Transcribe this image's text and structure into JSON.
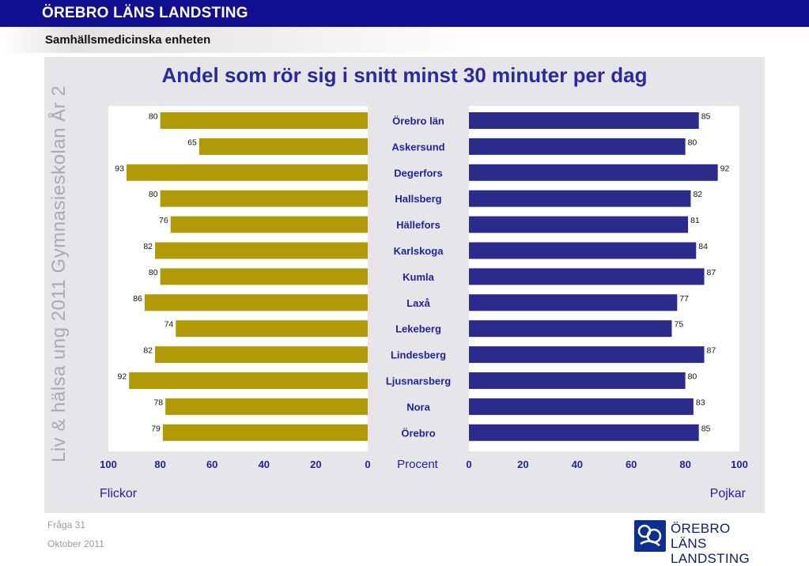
{
  "header": {
    "org_title": "ÖREBRO LÄNS LANDSTING",
    "unit_name": "Samhällsmedicinska enheten"
  },
  "side_text": "Liv & hälsa ung 2011 Gymnasieskolan År 2",
  "footer": {
    "question": "Fråga 31",
    "date": "Oktober 2011"
  },
  "logo": {
    "line1": "ÖREBRO LÄNS",
    "line2": "LANDSTING"
  },
  "colors": {
    "header_bg": "#0f0f8f",
    "girls_bar": "#b09a08",
    "boys_bar": "#2b2b8c",
    "panel_bg": "#e6e6ea"
  },
  "chart_data": {
    "type": "bar",
    "title": "Andel som rör sig i snitt minst 30 minuter per dag",
    "xlabel": "Procent",
    "categories": [
      "Örebro län",
      "Askersund",
      "Degerfors",
      "Hallsberg",
      "Hällefors",
      "Karlskoga",
      "Kumla",
      "Laxå",
      "Lekeberg",
      "Lindesberg",
      "Ljusnarsberg",
      "Nora",
      "Örebro"
    ],
    "series": [
      {
        "name": "Flickor",
        "values": [
          80,
          65,
          93,
          80,
          76,
          82,
          80,
          86,
          74,
          82,
          92,
          78,
          79
        ]
      },
      {
        "name": "Pojkar",
        "values": [
          85,
          80,
          92,
          82,
          81,
          84,
          87,
          77,
          75,
          87,
          80,
          83,
          85
        ]
      }
    ],
    "xlim": [
      0,
      100
    ],
    "ticks": [
      0,
      20,
      40,
      60,
      80,
      100
    ],
    "orientation": "horizontal-butterfly",
    "grid": false
  }
}
